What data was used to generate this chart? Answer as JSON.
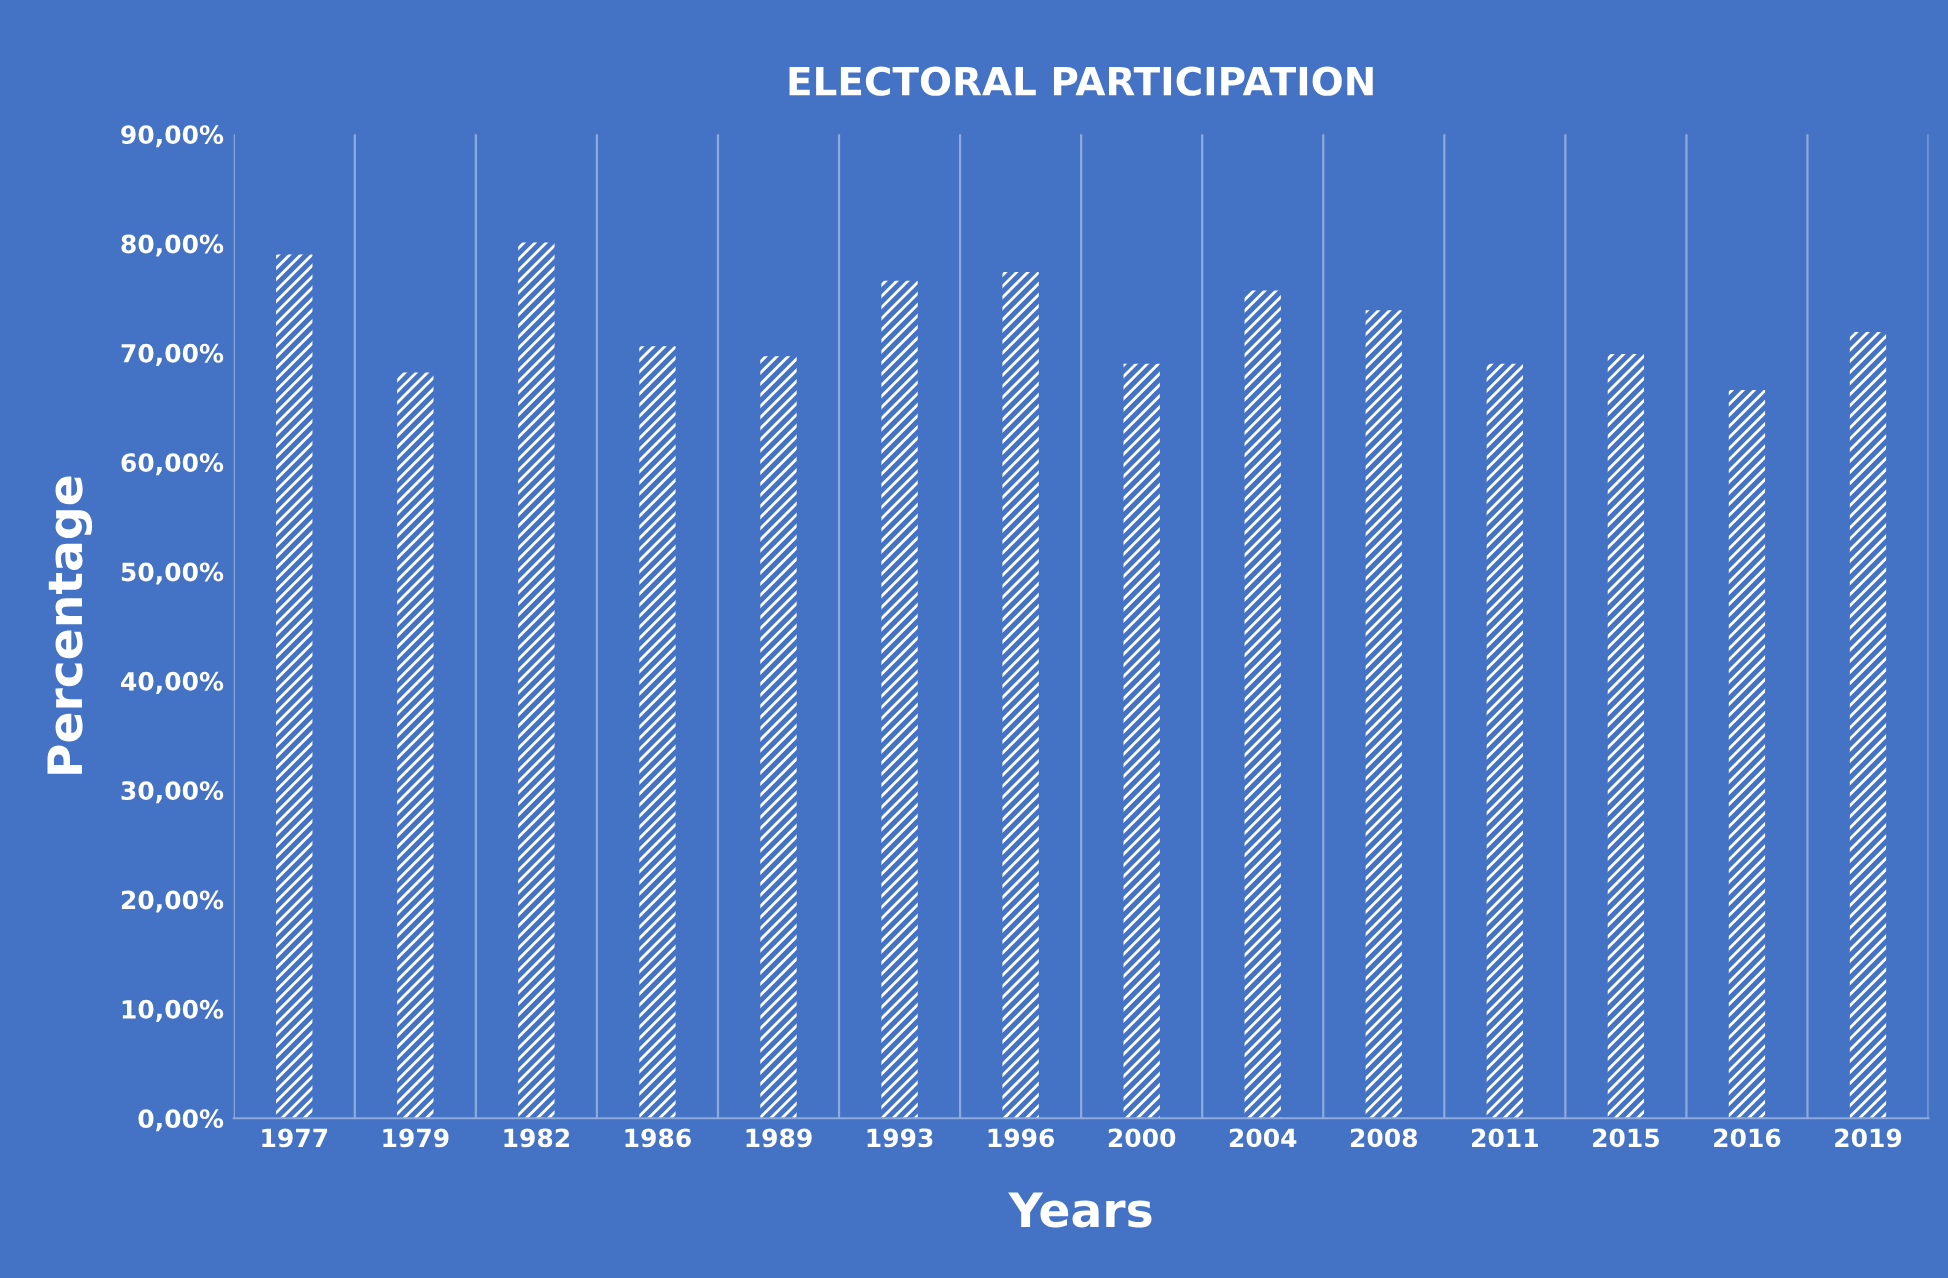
{
  "chart_data": {
    "type": "bar",
    "title": "ELECTORAL PARTICIPATION",
    "xlabel": "Years",
    "ylabel": "Percentage",
    "categories": [
      "1977",
      "1979",
      "1982",
      "1986",
      "1989",
      "1993",
      "1996",
      "2000",
      "2004",
      "2008",
      "2011",
      "2015",
      "2016",
      "2019"
    ],
    "values": [
      79.0,
      68.2,
      80.1,
      70.6,
      69.7,
      76.6,
      77.4,
      69.0,
      75.7,
      73.9,
      69.0,
      69.9,
      66.6,
      71.9
    ],
    "color": "#ffffff",
    "grid": "x",
    "ylim": [
      0,
      90
    ],
    "yticks": [
      {
        "value": 0,
        "label": "0,00%"
      },
      {
        "value": 10,
        "label": "10,00%"
      },
      {
        "value": 20,
        "label": "20,00%"
      },
      {
        "value": 30,
        "label": "30,00%"
      },
      {
        "value": 40,
        "label": "40,00%"
      },
      {
        "value": 50,
        "label": "50,00%"
      },
      {
        "value": 60,
        "label": "60,00%"
      },
      {
        "value": 70,
        "label": "70,00%"
      },
      {
        "value": 80,
        "label": "80,00%"
      },
      {
        "value": 90,
        "label": "90,00%"
      }
    ]
  }
}
